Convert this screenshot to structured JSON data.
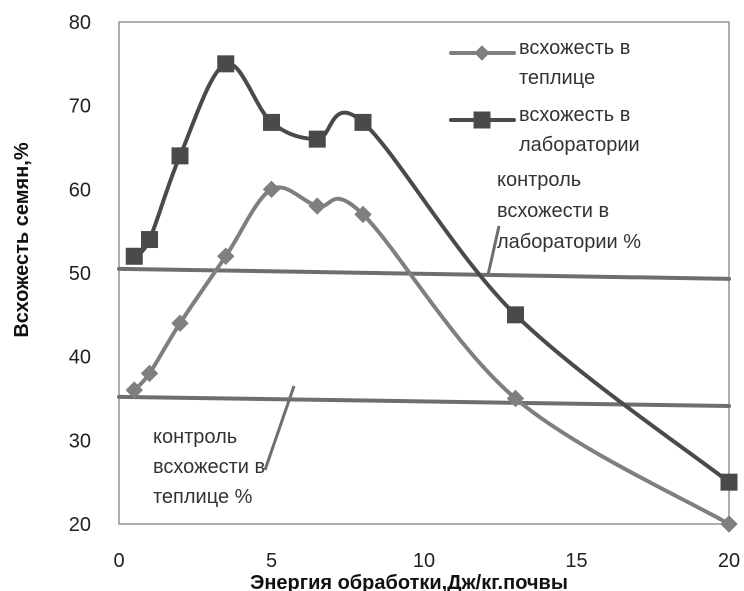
{
  "chart_data": {
    "type": "line",
    "xlabel": "Энергия обработки,Дж/кг.почвы",
    "ylabel": "Всхожесть семян,%",
    "xlim": [
      0,
      20
    ],
    "ylim": [
      20,
      80
    ],
    "xticks": [
      0,
      5,
      10,
      15,
      20
    ],
    "yticks": [
      20,
      30,
      40,
      50,
      60,
      70,
      80
    ],
    "xtick_labels": [
      "0",
      "5",
      "10",
      "15",
      "20"
    ],
    "ytick_labels": [
      "20",
      "30",
      "40",
      "50",
      "60",
      "70",
      "80"
    ],
    "grid": true,
    "legend_position": "top-right",
    "series": [
      {
        "name": "всхожесть в теплице",
        "name_lines": [
          "всхожесть в",
          "теплице"
        ],
        "color": "#7f7f7f",
        "marker": "diamond",
        "x": [
          0.5,
          1,
          2,
          3.5,
          5,
          6.5,
          8,
          13,
          20
        ],
        "y": [
          36,
          38,
          44,
          52,
          60,
          58,
          57,
          35,
          20
        ]
      },
      {
        "name": "всхожесть в лаборатории",
        "name_lines": [
          "всхожесть в",
          "лаборатории"
        ],
        "color": "#4a4a4a",
        "marker": "square",
        "x": [
          0.5,
          1,
          2,
          3.5,
          5,
          6.5,
          8,
          13,
          20
        ],
        "y": [
          52,
          54,
          64,
          75,
          68,
          66,
          68,
          45,
          25
        ]
      }
    ],
    "reference_lines": [
      {
        "name": "контроль всхожести в лаборатории %",
        "label_lines": [
          "контроль",
          "всхожести в",
          "лаборатории %"
        ],
        "x": [
          0,
          20
        ],
        "y": [
          50.5,
          49.3
        ],
        "color": "#6e6e6e"
      },
      {
        "name": "контроль всхожести в теплице %",
        "label_lines": [
          "контроль",
          "всхожести в",
          "теплице %"
        ],
        "x": [
          0,
          20
        ],
        "y": [
          35.2,
          34.1
        ],
        "color": "#6e6e6e"
      }
    ]
  }
}
